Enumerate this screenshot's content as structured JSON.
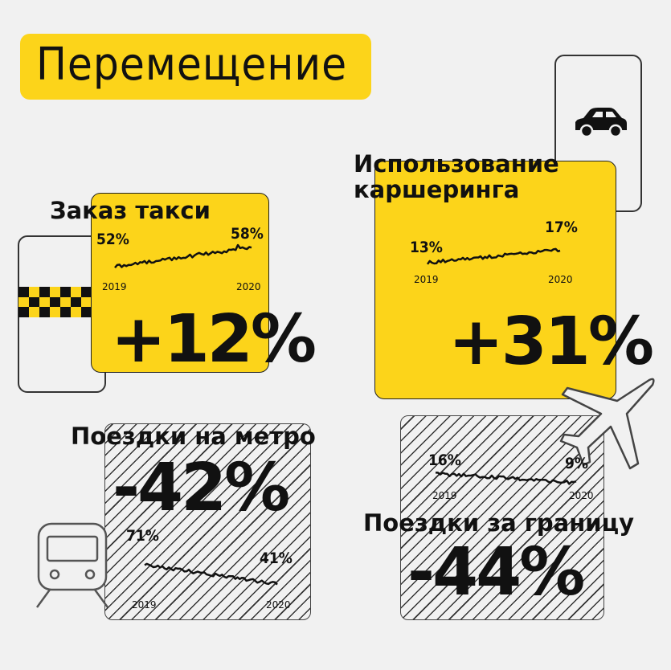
{
  "title": "Перемещение",
  "colors": {
    "accent": "#fcd41a",
    "ink": "#111111",
    "background": "#f1f1f1"
  },
  "taxi": {
    "heading": "Заказ такси",
    "start": "52%",
    "end": "58%",
    "year_start": "2019",
    "year_end": "2020",
    "change": "+12%",
    "icon": "taxi-phone-icon"
  },
  "carsharing": {
    "heading_line1": "Использование",
    "heading_line2": "каршеринга",
    "start": "13%",
    "end": "17%",
    "year_start": "2019",
    "year_end": "2020",
    "change": "+31%",
    "icon": "car-phone-icon"
  },
  "metro": {
    "heading": "Поездки на метро",
    "start": "71%",
    "end": "41%",
    "year_start": "2019",
    "year_end": "2020",
    "change": "-42%",
    "icon": "train-icon"
  },
  "abroad": {
    "heading": "Поездки за границу",
    "start": "16%",
    "end": "9%",
    "year_start": "2019",
    "year_end": "2020",
    "change": "-44%",
    "icon": "airplane-icon"
  },
  "chart_data": [
    {
      "type": "line",
      "name": "taxi",
      "x": [
        "2019",
        "2020"
      ],
      "y": [
        52,
        58
      ]
    },
    {
      "type": "line",
      "name": "carsharing",
      "x": [
        "2019",
        "2020"
      ],
      "y": [
        13,
        17
      ]
    },
    {
      "type": "line",
      "name": "metro",
      "x": [
        "2019",
        "2020"
      ],
      "y": [
        71,
        41
      ]
    },
    {
      "type": "line",
      "name": "abroad",
      "x": [
        "2019",
        "2020"
      ],
      "y": [
        16,
        9
      ]
    }
  ]
}
